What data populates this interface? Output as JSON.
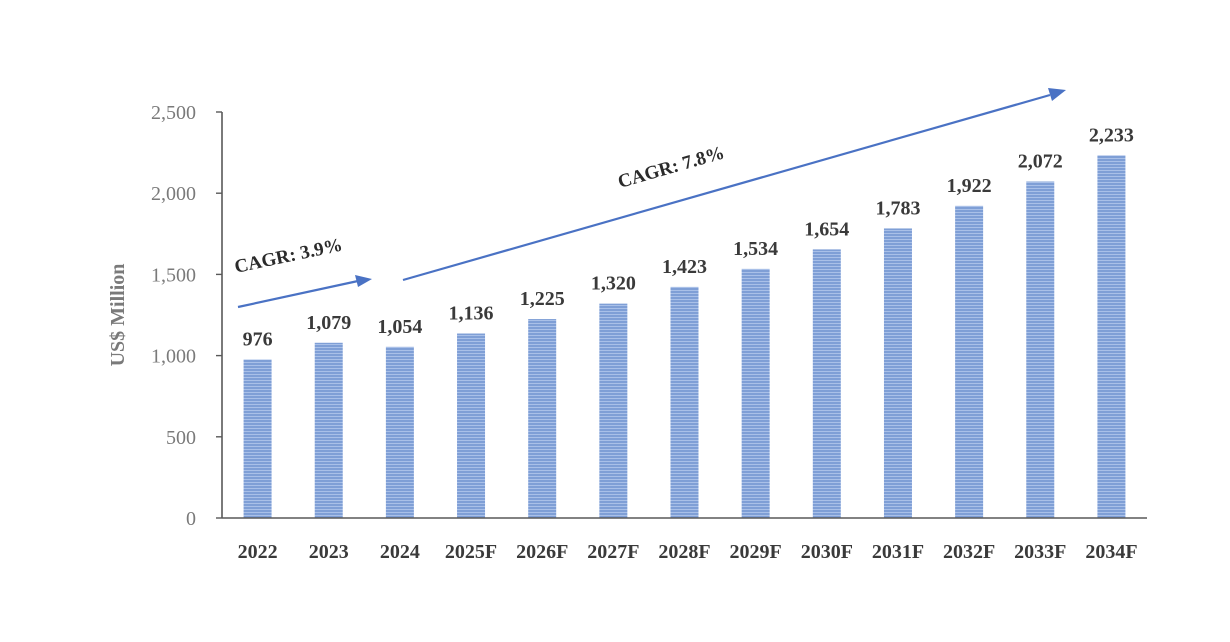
{
  "chart_data": {
    "type": "bar",
    "title": "",
    "xlabel": "",
    "ylabel": "US$ Million",
    "categories": [
      "2022",
      "2023",
      "2024",
      "2025F",
      "2026F",
      "2027F",
      "2028F",
      "2029F",
      "2030F",
      "2031F",
      "2032F",
      "2033F",
      "2034F"
    ],
    "values": [
      976,
      1079,
      1054,
      1136,
      1225,
      1320,
      1423,
      1534,
      1654,
      1783,
      1922,
      2072,
      2233
    ],
    "value_labels": [
      "976",
      "1,079",
      "1,054",
      "1,136",
      "1,225",
      "1,320",
      "1,423",
      "1,534",
      "1,654",
      "1,783",
      "1,922",
      "2,072",
      "2,233"
    ],
    "ylim": [
      0,
      2500
    ],
    "yticks": [
      0,
      500,
      1000,
      1500,
      2000,
      2500
    ],
    "ytick_labels": [
      "0",
      "500",
      "1,000",
      "1,500",
      "2,000",
      "2,500"
    ],
    "grid": false,
    "legend": "none",
    "bar_color": "#7f9fd6",
    "bar_stripe_color": "#a9c0e8",
    "annotations": [
      {
        "text": "CAGR: 3.9%",
        "from_category": "2022",
        "to_category": "2024"
      },
      {
        "text": "CAGR: 7.8%",
        "from_category": "2024",
        "to_category": "2034F"
      }
    ]
  },
  "colors": {
    "arrow": "#4a72c4",
    "axis": "#595959"
  }
}
